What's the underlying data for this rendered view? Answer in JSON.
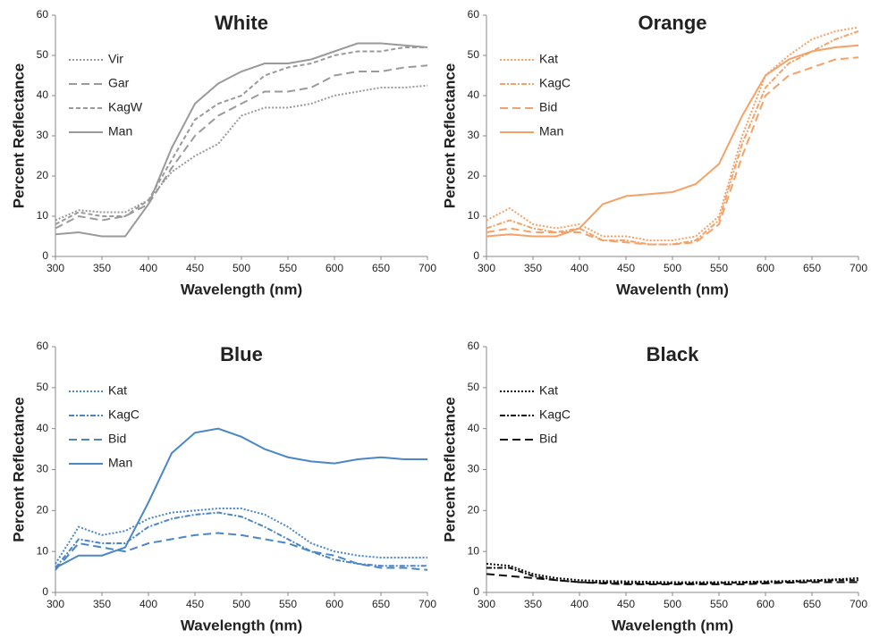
{
  "chart_data": [
    {
      "type": "line",
      "title": "White",
      "x_label": "Wavelength (nm)",
      "y_label": "Percent Reflectance",
      "x": [
        300,
        325,
        350,
        375,
        400,
        425,
        450,
        475,
        500,
        525,
        550,
        575,
        600,
        625,
        650,
        675,
        700
      ],
      "xlim": [
        300,
        700
      ],
      "xticks": [
        300,
        350,
        400,
        450,
        500,
        550,
        600,
        650,
        700
      ],
      "ylim": [
        0,
        60
      ],
      "yticks": [
        0,
        10,
        20,
        30,
        40,
        50,
        60
      ],
      "legend": "upper-left",
      "series": [
        {
          "name": "Vir",
          "color": "#9a9a9a",
          "dash": "dotted",
          "values": [
            9,
            11.5,
            11,
            11,
            14,
            21,
            25,
            28,
            35,
            37,
            37,
            38,
            40,
            41,
            42,
            42,
            42.5
          ]
        },
        {
          "name": "Gar",
          "color": "#9a9a9a",
          "dash": "dashed",
          "values": [
            7,
            10,
            9,
            10,
            13,
            22,
            30,
            35,
            38,
            41,
            41,
            42,
            45,
            46,
            46,
            47,
            47.5
          ]
        },
        {
          "name": "KagW",
          "color": "#9a9a9a",
          "dash": "short-dash",
          "values": [
            8,
            11,
            10,
            10,
            14,
            24,
            34,
            38,
            40,
            45,
            47,
            48,
            50,
            51,
            51,
            52,
            52
          ]
        },
        {
          "name": "Man",
          "color": "#9a9a9a",
          "dash": "solid",
          "values": [
            5.5,
            6,
            5,
            5,
            13,
            27,
            38,
            43,
            46,
            48,
            48,
            49,
            51,
            53,
            53,
            52.5,
            52
          ]
        }
      ]
    },
    {
      "type": "line",
      "title": "Orange",
      "x_label": "Wavelenth (nm)",
      "y_label": "Percent Reflectance",
      "x": [
        300,
        325,
        350,
        375,
        400,
        425,
        450,
        475,
        500,
        525,
        550,
        575,
        600,
        625,
        650,
        675,
        700
      ],
      "xlim": [
        300,
        700
      ],
      "xticks": [
        300,
        350,
        400,
        450,
        500,
        550,
        600,
        650,
        700
      ],
      "ylim": [
        0,
        60
      ],
      "yticks": [
        0,
        10,
        20,
        30,
        40,
        50,
        60
      ],
      "legend": "upper-left",
      "series": [
        {
          "name": "Kat",
          "color": "#f4a268",
          "dash": "dotted",
          "values": [
            9,
            12,
            8,
            7,
            8,
            5,
            5,
            4,
            4,
            5,
            10,
            30,
            45,
            50,
            54,
            56,
            57
          ]
        },
        {
          "name": "KagC",
          "color": "#f4a268",
          "dash": "dash-dot",
          "values": [
            7,
            9,
            7,
            6,
            7,
            4,
            4,
            3,
            3,
            4,
            9,
            28,
            42,
            48,
            51,
            54,
            56
          ]
        },
        {
          "name": "Bid",
          "color": "#f4a268",
          "dash": "dashed",
          "values": [
            6,
            7,
            6,
            6,
            6,
            4,
            3.5,
            3,
            3,
            3.5,
            8,
            25,
            40,
            45,
            47,
            49,
            49.5
          ]
        },
        {
          "name": "Man",
          "color": "#f4a268",
          "dash": "solid",
          "values": [
            5,
            5.5,
            5,
            5,
            7,
            13,
            15,
            15.5,
            16,
            18,
            23,
            35,
            45,
            49,
            51,
            52,
            52.5
          ]
        }
      ]
    },
    {
      "type": "line",
      "title": "Blue",
      "x_label": "Wavelength (nm)",
      "y_label": "Percent Reflectance",
      "x": [
        300,
        325,
        350,
        375,
        400,
        425,
        450,
        475,
        500,
        525,
        550,
        575,
        600,
        625,
        650,
        675,
        700
      ],
      "xlim": [
        300,
        700
      ],
      "xticks": [
        300,
        350,
        400,
        450,
        500,
        550,
        600,
        650,
        700
      ],
      "ylim": [
        0,
        60
      ],
      "yticks": [
        0,
        10,
        20,
        30,
        40,
        50,
        60
      ],
      "legend": "upper-left",
      "series": [
        {
          "name": "Kat",
          "color": "#4a86c8",
          "dash": "dotted",
          "values": [
            7,
            16,
            14,
            15,
            18,
            19.5,
            20,
            20.5,
            20.5,
            19,
            16,
            12,
            10,
            9,
            8.5,
            8.5,
            8.5
          ]
        },
        {
          "name": "KagC",
          "color": "#4a86c8",
          "dash": "dash-dot",
          "values": [
            6,
            13,
            12,
            12,
            16,
            18,
            19,
            19.5,
            18.5,
            16,
            13,
            10,
            8,
            7,
            6.5,
            6.5,
            6.5
          ]
        },
        {
          "name": "Bid",
          "color": "#4a86c8",
          "dash": "dashed",
          "values": [
            5.5,
            12,
            11,
            10,
            12,
            13,
            14,
            14.5,
            14,
            13,
            12,
            10,
            9,
            7,
            6,
            6,
            5.5
          ]
        },
        {
          "name": "Man",
          "color": "#4a86c8",
          "dash": "solid",
          "values": [
            6,
            9,
            9,
            11,
            22,
            34,
            39,
            40,
            38,
            35,
            33,
            32,
            31.5,
            32.5,
            33,
            32.5,
            32.5
          ]
        }
      ]
    },
    {
      "type": "line",
      "title": "Black",
      "x_label": "Wavelength (nm)",
      "y_label": "Percent Reflectance",
      "x": [
        300,
        325,
        350,
        375,
        400,
        425,
        450,
        475,
        500,
        525,
        550,
        575,
        600,
        625,
        650,
        675,
        700
      ],
      "xlim": [
        300,
        700
      ],
      "xticks": [
        300,
        350,
        400,
        450,
        500,
        550,
        600,
        650,
        700
      ],
      "ylim": [
        0,
        60
      ],
      "yticks": [
        0,
        10,
        20,
        30,
        40,
        50,
        60
      ],
      "legend": "upper-left",
      "series": [
        {
          "name": "Kat",
          "color": "#111111",
          "dash": "dotted",
          "values": [
            7,
            6.5,
            4.5,
            3.5,
            3,
            2.8,
            2.7,
            2.6,
            2.5,
            2.5,
            2.5,
            2.6,
            2.7,
            2.8,
            3,
            3.2,
            3.5
          ]
        },
        {
          "name": "KagC",
          "color": "#111111",
          "dash": "dash-dot",
          "values": [
            6,
            6,
            4,
            3,
            2.5,
            2.4,
            2.3,
            2.2,
            2.2,
            2.2,
            2.3,
            2.4,
            2.5,
            2.6,
            2.8,
            3,
            3
          ]
        },
        {
          "name": "Bid",
          "color": "#111111",
          "dash": "dashed",
          "values": [
            4.5,
            4,
            3.5,
            3,
            2.5,
            2.2,
            2,
            2,
            2,
            2,
            2,
            2,
            2.2,
            2.4,
            2.5,
            2.5,
            2.5
          ]
        }
      ]
    }
  ]
}
